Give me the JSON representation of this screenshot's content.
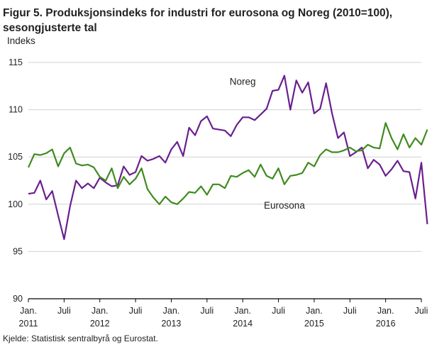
{
  "chart_data": {
    "type": "line",
    "title": "Figur 5. Produksjonsindeks for industri for eurosona og Noreg (2010=100), sesongjusterte tal",
    "ylabel": "Indeks",
    "source": "Kjelde: Statistisk sentralbyrå og Eurostat.",
    "ylim": [
      90,
      115
    ],
    "yticks": [
      90,
      95,
      100,
      105,
      110,
      115
    ],
    "grid": "horizontal",
    "x_start": "2011-01",
    "x_end": "2016-07",
    "xticks": [
      {
        "month": "2011-01",
        "label": "Jan.",
        "year": "2011"
      },
      {
        "month": "2011-07",
        "label": "Juli",
        "year": ""
      },
      {
        "month": "2012-01",
        "label": "Jan.",
        "year": "2012"
      },
      {
        "month": "2012-07",
        "label": "Juli",
        "year": ""
      },
      {
        "month": "2013-01",
        "label": "Jan.",
        "year": "2013"
      },
      {
        "month": "2013-07",
        "label": "Juli",
        "year": ""
      },
      {
        "month": "2014-01",
        "label": "Jan.",
        "year": "2014"
      },
      {
        "month": "2014-07",
        "label": "Juli",
        "year": ""
      },
      {
        "month": "2015-01",
        "label": "Jan.",
        "year": "2015"
      },
      {
        "month": "2015-07",
        "label": "Juli",
        "year": ""
      },
      {
        "month": "2016-01",
        "label": "Jan.",
        "year": "2016"
      },
      {
        "month": "2016-07",
        "label": "Juli",
        "year": ""
      }
    ],
    "series": [
      {
        "name": "Noreg",
        "color": "#6a1f8e",
        "label_near": "2014-01",
        "values": [
          101.1,
          101.2,
          102.5,
          100.5,
          101.4,
          98.8,
          96.3,
          99.8,
          102.5,
          101.7,
          102.2,
          101.7,
          102.8,
          102.3,
          101.9,
          102.0,
          104.0,
          103.1,
          103.4,
          105.1,
          104.6,
          104.8,
          105.1,
          104.4,
          105.8,
          106.6,
          105.1,
          108.1,
          107.3,
          108.8,
          109.3,
          108.0,
          107.9,
          107.8,
          107.2,
          108.4,
          109.2,
          109.2,
          108.9,
          109.5,
          110.1,
          112.0,
          112.1,
          113.6,
          110.0,
          113.1,
          111.8,
          112.9,
          109.6,
          110.1,
          112.8,
          109.6,
          107.0,
          107.6,
          105.1,
          105.5,
          106.0,
          103.8,
          104.7,
          104.2,
          103.0,
          103.7,
          104.6,
          103.5,
          103.4,
          100.6,
          104.4,
          97.9
        ]
      },
      {
        "name": "Eurosona",
        "color": "#3f8b1f",
        "label_near": "2014-08",
        "values": [
          103.9,
          105.3,
          105.2,
          105.4,
          105.8,
          104.0,
          105.4,
          106.0,
          104.3,
          104.1,
          104.2,
          103.9,
          102.9,
          102.5,
          103.8,
          101.7,
          102.9,
          102.1,
          102.7,
          103.8,
          101.6,
          100.7,
          100.0,
          100.8,
          100.2,
          100.0,
          100.6,
          101.3,
          101.2,
          101.9,
          101.0,
          102.1,
          102.1,
          101.7,
          103.0,
          102.9,
          103.3,
          103.6,
          102.9,
          104.2,
          103.0,
          102.7,
          103.8,
          102.1,
          103.0,
          103.1,
          103.3,
          104.4,
          104.0,
          105.2,
          105.8,
          105.5,
          105.5,
          105.7,
          106.0,
          105.6,
          105.7,
          106.3,
          106.0,
          105.9,
          108.6,
          107.0,
          105.8,
          107.4,
          106.0,
          107.0,
          106.3,
          107.9
        ]
      }
    ]
  }
}
